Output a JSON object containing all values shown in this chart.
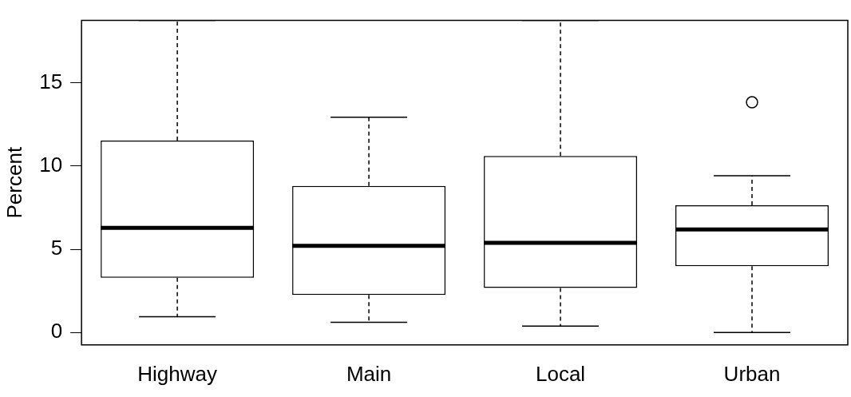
{
  "chart_data": {
    "type": "box",
    "ylabel": "Percent",
    "categories": [
      "Highway",
      "Main",
      "Local",
      "Urban"
    ],
    "ylim": [
      -0.75,
      18.75
    ],
    "yticks": [
      0,
      5,
      10,
      15
    ],
    "grid": false,
    "legend": false,
    "color": "#000000",
    "boxes": [
      {
        "low": 0.94,
        "q1": 3.28,
        "median": 6.28,
        "q3": 11.53,
        "high": 18.75
      },
      {
        "low": 0.61,
        "q1": 2.25,
        "median": 5.2,
        "q3": 8.81,
        "high": 12.94
      },
      {
        "low": 0.38,
        "q1": 2.67,
        "median": 5.39,
        "q3": 10.6,
        "high": 18.75
      },
      {
        "low": 0,
        "q1": 3.98,
        "median": 6.19,
        "q3": 7.64,
        "high": 9.42,
        "outliers": [
          13.83
        ]
      }
    ]
  }
}
